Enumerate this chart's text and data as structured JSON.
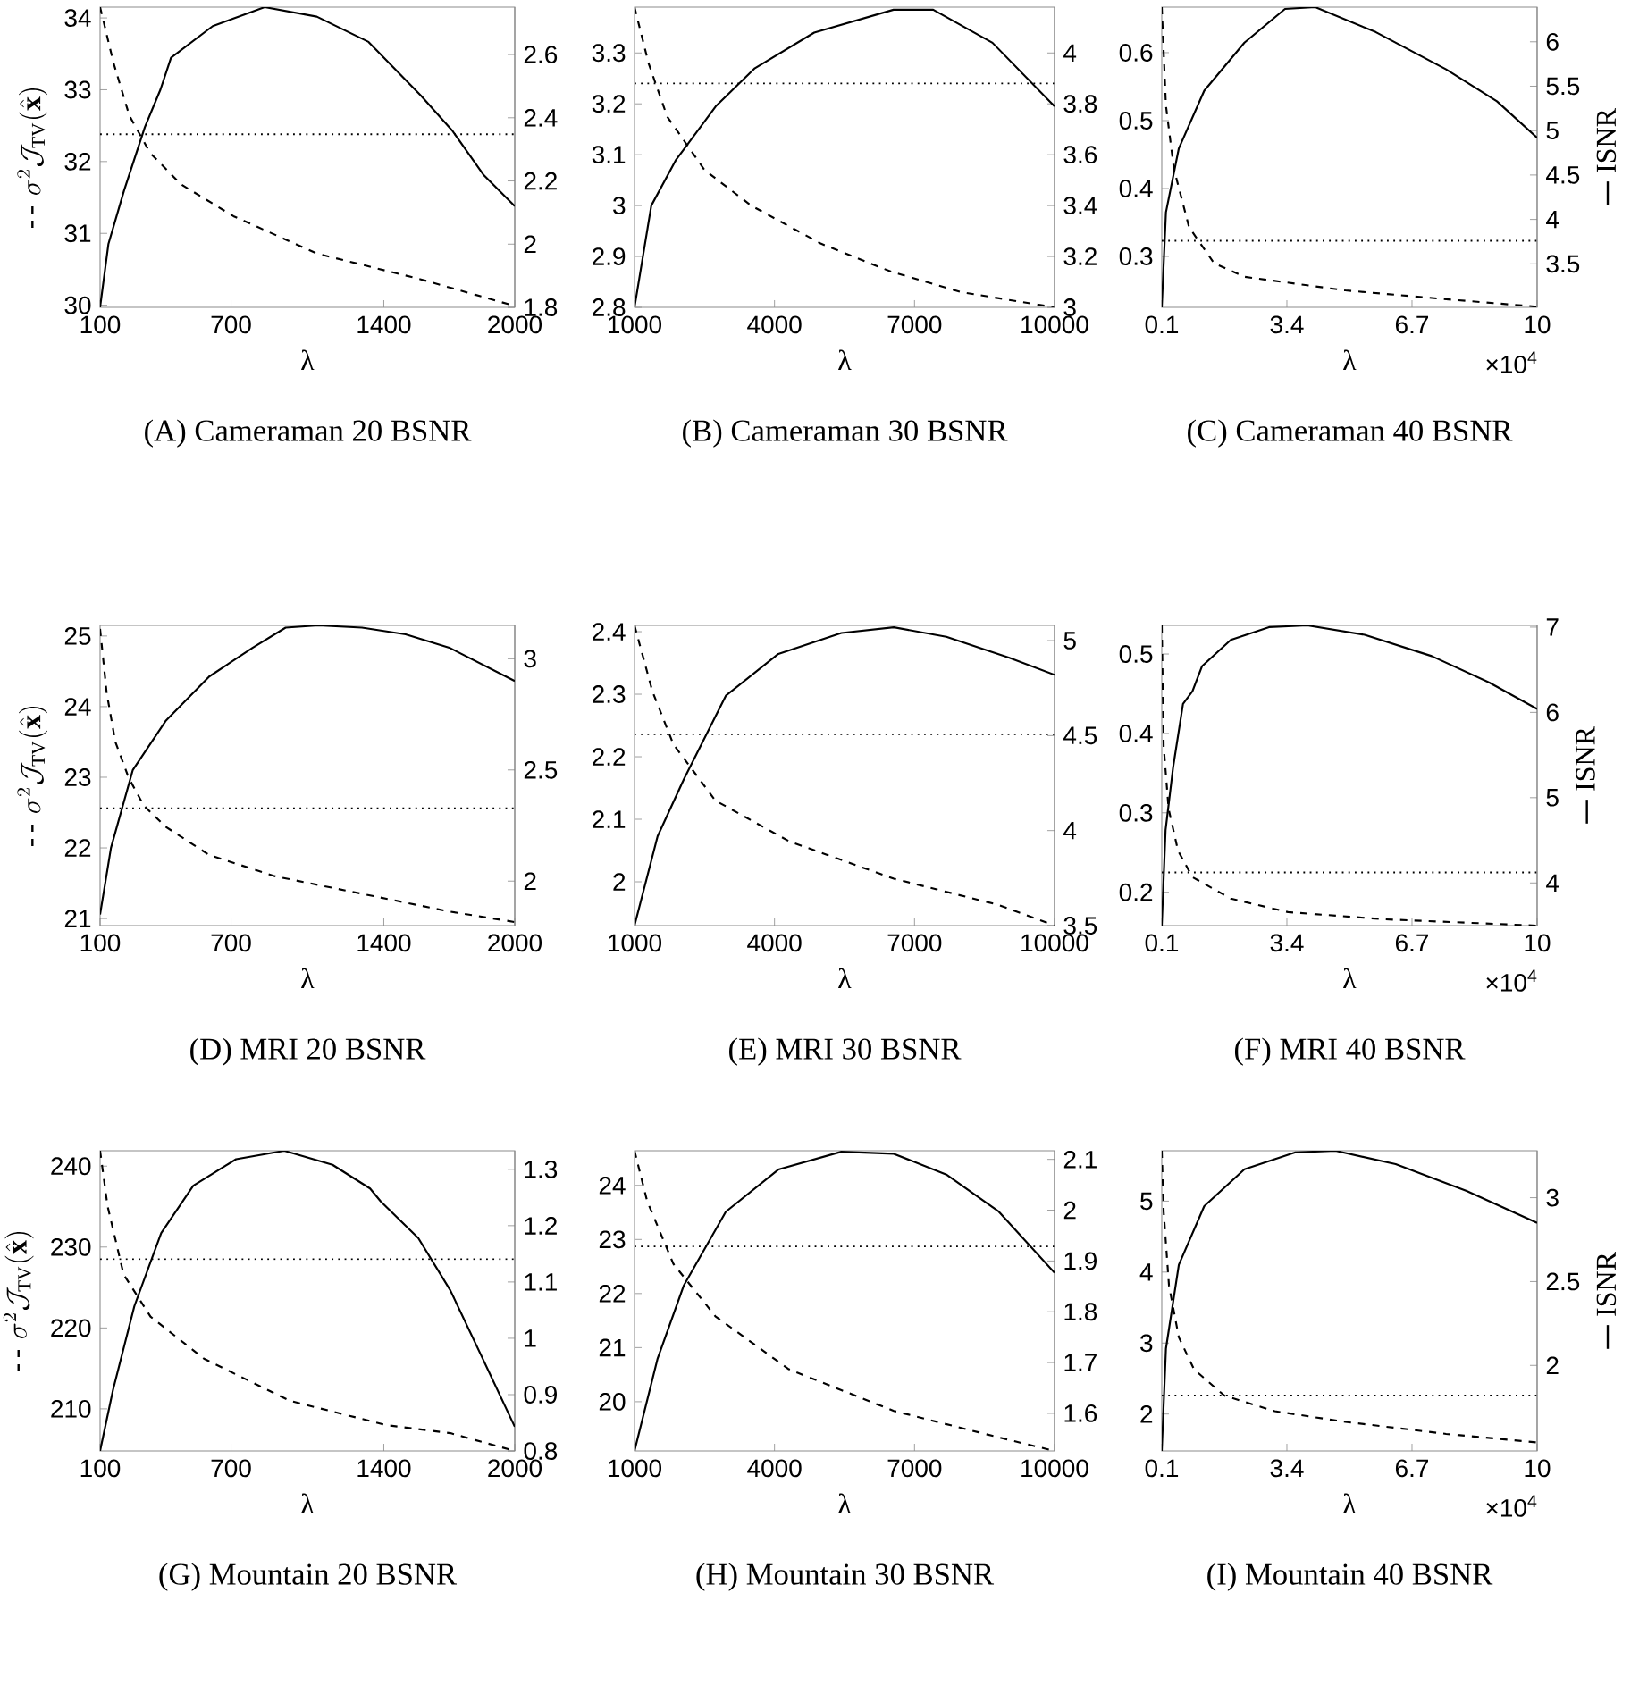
{
  "chart_data": [
    {
      "type": "line",
      "title": "(A) Cameraman 20 BSNR",
      "xlabel": "λ",
      "ylabel": "\\sigma^{2}\\mathcal{J}_{\\mathrm{TV}}(\\hat{\\mathbf{x}})",
      "xlim": [
        100,
        2000
      ],
      "xticks": [
        100,
        700,
        1400,
        2000
      ],
      "ylim": [
        29.97,
        34.15
      ],
      "yticks": [
        30,
        31,
        32,
        33,
        34
      ],
      "y2lim": [
        1.8,
        2.75
      ],
      "y2ticks": [
        1.8,
        2,
        2.2,
        2.4,
        2.6
      ],
      "ref_lines": [
        {
          "axis": "y",
          "value": 32.38,
          "color": "#000000",
          "line_style": "dotted"
        }
      ],
      "series": [
        {
          "color": "#000000",
          "line_style": "dashed",
          "x": [
            100,
            162,
            234,
            329,
            472,
            711,
            1093,
            1570,
            2000
          ],
          "values": [
            34.15,
            33.37,
            32.64,
            32.12,
            31.68,
            31.24,
            30.72,
            30.36,
            29.99
          ]
        },
        {
          "color": "#000000",
          "line_style": "solid",
          "axis": "y2",
          "x": [
            100,
            138,
            210,
            305,
            377,
            425,
            616,
            854,
            1093,
            1330,
            1570,
            1713,
            1856,
            2000
          ],
          "values": [
            1.8,
            2.0,
            2.17,
            2.37,
            2.49,
            2.59,
            2.69,
            2.75,
            2.72,
            2.64,
            2.47,
            2.36,
            2.22,
            2.12
          ]
        }
      ]
    },
    {
      "type": "line",
      "title": "(B) Cameraman 30 BSNR",
      "xlabel": "λ",
      "xlim": [
        1000,
        10000
      ],
      "xticks": [
        1000,
        4000,
        7000,
        10000
      ],
      "ylim": [
        2.8,
        3.39
      ],
      "yticks": [
        2.8,
        2.9,
        3,
        3.1,
        3.2,
        3.3
      ],
      "y2lim": [
        3,
        4.18
      ],
      "y2ticks": [
        3,
        3.2,
        3.4,
        3.6,
        3.8,
        4
      ],
      "ref_lines": [
        {
          "axis": "y",
          "value": 3.24,
          "color": "#000000",
          "line_style": "dotted"
        }
      ],
      "series": [
        {
          "color": "#000000",
          "line_style": "dashed",
          "x": [
            1000,
            1300,
            1700,
            2500,
            3500,
            5000,
            6500,
            8000,
            10000
          ],
          "values": [
            3.39,
            3.28,
            3.175,
            3.07,
            3.0,
            2.925,
            2.87,
            2.83,
            2.8
          ]
        },
        {
          "color": "#000000",
          "line_style": "solid",
          "axis": "y2",
          "x": [
            1000,
            1360,
            1890,
            2740,
            3580,
            4850,
            6550,
            7400,
            8670,
            10000
          ],
          "values": [
            3.0,
            3.4,
            3.58,
            3.79,
            3.94,
            4.08,
            4.17,
            4.17,
            4.04,
            3.79
          ]
        }
      ]
    },
    {
      "type": "line",
      "title": "(C) Cameraman 40 BSNR",
      "xlabel": "λ",
      "y2label": "ISNR",
      "annotations": [
        "×10$^{4}$"
      ],
      "xlim": [
        0.1,
        10
      ],
      "xticks": [
        0.1,
        3.4,
        6.7,
        10
      ],
      "ylim": [
        0.225,
        0.667
      ],
      "yticks": [
        0.3,
        0.4,
        0.5,
        0.6
      ],
      "y2lim": [
        3.01,
        6.39
      ],
      "y2ticks": [
        3.5,
        4,
        4.5,
        5,
        5.5,
        6
      ],
      "ref_lines": [
        {
          "axis": "y",
          "value": 0.323,
          "color": "#000000",
          "line_style": "dotted"
        }
      ],
      "series": [
        {
          "color": "#000000",
          "line_style": "dashed",
          "x": [
            0.1,
            0.21,
            0.42,
            0.82,
            1.48,
            2.28,
            4.94,
            7.6,
            10
          ],
          "values": [
            0.667,
            0.522,
            0.429,
            0.343,
            0.29,
            0.27,
            0.25,
            0.237,
            0.226
          ]
        },
        {
          "color": "#000000",
          "line_style": "solid",
          "axis": "y2",
          "x": [
            0.1,
            0.21,
            0.55,
            1.22,
            2.28,
            3.35,
            4.15,
            5.74,
            7.6,
            8.94,
            10
          ],
          "values": [
            3.01,
            4.08,
            4.8,
            5.45,
            5.99,
            6.37,
            6.39,
            6.11,
            5.69,
            5.33,
            4.92
          ]
        }
      ]
    },
    {
      "type": "line",
      "title": "(D) MRI 20 BSNR",
      "xlabel": "λ",
      "ylabel": "\\sigma^{2}\\mathcal{J}_{\\mathrm{TV}}(\\hat{\\mathbf{x}})",
      "xlim": [
        100,
        2000
      ],
      "xticks": [
        100,
        700,
        1400,
        2000
      ],
      "ylim": [
        20.9,
        25.15
      ],
      "yticks": [
        21,
        22,
        23,
        24,
        25
      ],
      "y2lim": [
        1.8,
        3.15
      ],
      "y2ticks": [
        2,
        2.5,
        3
      ],
      "ref_lines": [
        {
          "axis": "y",
          "value": 22.56,
          "color": "#000000",
          "line_style": "dotted"
        }
      ],
      "series": [
        {
          "color": "#000000",
          "line_style": "dashed",
          "x": [
            100,
            130,
            170,
            230,
            300,
            400,
            600,
            900,
            1300,
            1700,
            2000
          ],
          "values": [
            25.1,
            24.2,
            23.5,
            23.0,
            22.6,
            22.3,
            21.9,
            21.6,
            21.35,
            21.1,
            20.95
          ]
        },
        {
          "color": "#000000",
          "line_style": "solid",
          "axis": "y2",
          "x": [
            100,
            150,
            250,
            400,
            600,
            800,
            950,
            1100,
            1300,
            1500,
            1700,
            2000
          ],
          "values": [
            1.85,
            2.15,
            2.5,
            2.72,
            2.92,
            3.05,
            3.14,
            3.15,
            3.14,
            3.11,
            3.05,
            2.9
          ]
        }
      ]
    },
    {
      "type": "line",
      "title": "(E) MRI 30 BSNR",
      "xlabel": "λ",
      "xlim": [
        1000,
        10000
      ],
      "xticks": [
        1000,
        4000,
        7000,
        10000
      ],
      "ylim": [
        1.93,
        2.41
      ],
      "yticks": [
        2,
        2.1,
        2.2,
        2.3,
        2.4
      ],
      "y2lim": [
        3.5,
        5.08
      ],
      "y2ticks": [
        3.5,
        4,
        4.5,
        5
      ],
      "ref_lines": [
        {
          "axis": "y",
          "value": 2.236,
          "color": "#000000",
          "line_style": "dotted"
        }
      ],
      "series": [
        {
          "color": "#000000",
          "line_style": "dashed",
          "x": [
            1000,
            1382,
            1832,
            2732,
            4307,
            6557,
            8807,
            10000
          ],
          "values": [
            2.41,
            2.305,
            2.22,
            2.13,
            2.065,
            2.005,
            1.963,
            1.93
          ]
        },
        {
          "color": "#000000",
          "line_style": "solid",
          "axis": "y2",
          "x": [
            1000,
            1495,
            2057,
            2957,
            4082,
            5432,
            6557,
            7682,
            9032,
            10000
          ],
          "values": [
            3.5,
            3.97,
            4.27,
            4.71,
            4.93,
            5.04,
            5.07,
            5.02,
            4.91,
            4.82
          ]
        }
      ]
    },
    {
      "type": "line",
      "title": "(F) MRI 40 BSNR",
      "xlabel": "λ",
      "y2label": "ISNR",
      "annotations": [
        "×10$^{4}$"
      ],
      "xlim": [
        0.1,
        10
      ],
      "xticks": [
        0.1,
        3.4,
        6.7,
        10
      ],
      "ylim": [
        0.158,
        0.536
      ],
      "yticks": [
        0.2,
        0.3,
        0.4,
        0.5
      ],
      "y2lim": [
        3.5,
        7.02
      ],
      "y2ticks": [
        4,
        5,
        6,
        7
      ],
      "ref_lines": [
        {
          "axis": "y",
          "value": 0.225,
          "color": "#000000",
          "line_style": "dotted"
        }
      ],
      "series": [
        {
          "color": "#000000",
          "line_style": "dashed",
          "x": [
            0.1,
            0.15,
            0.28,
            0.53,
            0.91,
            1.92,
            3.43,
            5.96,
            10
          ],
          "values": [
            0.536,
            0.384,
            0.305,
            0.252,
            0.219,
            0.192,
            0.175,
            0.166,
            0.158
          ]
        },
        {
          "color": "#000000",
          "line_style": "solid",
          "axis": "y2",
          "x": [
            0.1,
            0.2,
            0.4,
            0.66,
            0.91,
            1.16,
            1.92,
            2.93,
            3.94,
            5.45,
            7.22,
            8.74,
            10
          ],
          "values": [
            3.5,
            4.62,
            5.36,
            6.1,
            6.25,
            6.54,
            6.85,
            7.0,
            7.02,
            6.91,
            6.66,
            6.35,
            6.04
          ]
        }
      ]
    },
    {
      "type": "line",
      "title": "(G) Mountain 20 BSNR",
      "xlabel": "λ",
      "ylabel": "\\sigma^{2}\\mathcal{J}_{\\mathrm{TV}}(\\hat{\\mathbf{x}})",
      "xlim": [
        100,
        2000
      ],
      "xticks": [
        100,
        700,
        1400,
        2000
      ],
      "ylim": [
        204.8,
        241.9
      ],
      "yticks": [
        210,
        220,
        230,
        240
      ],
      "y2lim": [
        0.8,
        1.333
      ],
      "y2ticks": [
        0.8,
        0.9,
        1,
        1.1,
        1.2,
        1.3
      ],
      "ref_lines": [
        {
          "axis": "y",
          "value": 228.5,
          "color": "#000000",
          "line_style": "dotted"
        }
      ],
      "series": [
        {
          "color": "#000000",
          "line_style": "dashed",
          "x": [
            100,
            134,
            208,
            331,
            576,
            969,
            1411,
            1705,
            2000
          ],
          "values": [
            241.9,
            235.1,
            226.6,
            221.4,
            216.2,
            211.0,
            208.0,
            207.0,
            204.8
          ]
        },
        {
          "color": "#000000",
          "line_style": "solid",
          "axis": "y2",
          "x": [
            100,
            159,
            257,
            380,
            527,
            723,
            944,
            1165,
            1337,
            1386,
            1558,
            1705,
            1853,
            2000
          ],
          "values": [
            0.8,
            0.908,
            1.057,
            1.187,
            1.271,
            1.318,
            1.333,
            1.308,
            1.266,
            1.243,
            1.178,
            1.085,
            0.964,
            0.843
          ]
        }
      ]
    },
    {
      "type": "line",
      "title": "(H) Mountain 30 BSNR",
      "xlabel": "λ",
      "xlim": [
        1000,
        10000
      ],
      "xticks": [
        1000,
        4000,
        7000,
        10000
      ],
      "ylim": [
        19.09,
        24.64
      ],
      "yticks": [
        20,
        21,
        22,
        23,
        24
      ],
      "y2lim": [
        1.526,
        2.117
      ],
      "y2ticks": [
        1.6,
        1.7,
        1.8,
        1.9,
        2,
        2.1
      ],
      "ref_lines": [
        {
          "axis": "y",
          "value": 22.87,
          "color": "#000000",
          "line_style": "dotted"
        }
      ],
      "series": [
        {
          "color": "#000000",
          "line_style": "dashed",
          "x": [
            1000,
            1270,
            1832,
            2732,
            4307,
            6557,
            8807,
            10000
          ],
          "values": [
            24.64,
            23.71,
            22.55,
            21.58,
            20.6,
            19.83,
            19.34,
            19.09
          ]
        },
        {
          "color": "#000000",
          "line_style": "solid",
          "axis": "y2",
          "x": [
            1000,
            1495,
            2057,
            2957,
            4082,
            5432,
            6557,
            7682,
            8807,
            10000
          ],
          "values": [
            1.526,
            1.708,
            1.852,
            1.997,
            2.08,
            2.115,
            2.111,
            2.07,
            1.997,
            1.877
          ]
        }
      ]
    },
    {
      "type": "line",
      "title": "(I) Mountain 40 BSNR",
      "xlabel": "λ",
      "y2label": "ISNR",
      "annotations": [
        "×10$^{4}$"
      ],
      "xlim": [
        0.1,
        10
      ],
      "xticks": [
        0.1,
        3.4,
        6.7,
        10
      ],
      "ylim": [
        1.48,
        5.71
      ],
      "yticks": [
        2,
        3,
        4,
        5
      ],
      "y2lim": [
        1.49,
        3.28
      ],
      "y2ticks": [
        2,
        2.5,
        3
      ],
      "ref_lines": [
        {
          "axis": "y",
          "value": 2.26,
          "color": "#000000",
          "line_style": "dotted"
        }
      ],
      "series": [
        {
          "color": "#000000",
          "line_style": "dashed",
          "x": [
            0.1,
            0.15,
            0.29,
            0.55,
            0.95,
            1.75,
            3.08,
            4.94,
            7.6,
            10
          ],
          "values": [
            5.71,
            4.85,
            3.81,
            3.08,
            2.63,
            2.26,
            2.04,
            1.89,
            1.72,
            1.6
          ]
        },
        {
          "color": "#000000",
          "line_style": "solid",
          "axis": "y2",
          "x": [
            0.1,
            0.21,
            0.55,
            1.22,
            2.28,
            3.61,
            4.68,
            6.27,
            8.14,
            10
          ],
          "values": [
            1.49,
            2.1,
            2.6,
            2.95,
            3.17,
            3.27,
            3.28,
            3.2,
            3.04,
            2.85
          ]
        }
      ]
    }
  ]
}
